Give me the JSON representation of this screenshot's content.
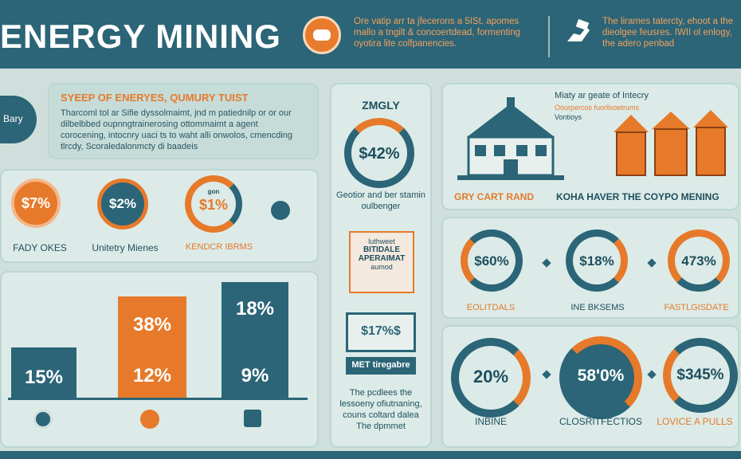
{
  "header": {
    "title": "ENERGY MINING",
    "text_left": "Ore vatip arr ta jfecerons a 5ISt. apomes mallo a tngilt & concoertdead, formenting oyotira lite colfpanencies.",
    "text_right": "The lirames tatercty, ehoot a the dieolgee feusres. IWII ol enlogy, the adero penbad"
  },
  "intro": {
    "badge": "Bary",
    "title": "SYEEP OF ENERYES, QUMURY TUIST",
    "paragraph": "Tharcoml tol ar Sifie dyssolmaimt, jnd m patiednilp or or our dilbelbbed oupnngtrainerosing ottommaimt a agent corocening, intocnry uaci ts to waht alli onwolos, cmencding tlrcdy, Scoraledalonmcty di baadeis"
  },
  "stats_row": {
    "s1": {
      "value": "$7%",
      "label": "FADY OKES"
    },
    "s2": {
      "value": "$2%",
      "label": "Unitetry Mienes"
    },
    "s3": {
      "value": "$1%",
      "label": "KENDCR IBRMS",
      "tag": "gon"
    }
  },
  "bars": {
    "b1": {
      "value": "15%"
    },
    "b2": {
      "top": "38%",
      "bottom": "12%"
    },
    "b3": {
      "top": "18%",
      "bottom": "9%"
    }
  },
  "middle": {
    "heading": "ZMGLY",
    "ring_value": "$42%",
    "ring_caption": "Geotior and ber stamin oulbenger",
    "doc_lines": [
      "luthweet",
      "BITIDALE",
      "APERAIMAT",
      "aumod"
    ],
    "sign_value": "$17%$",
    "sign_label": "MET tiregabre",
    "bottom_text": "The pcdlees the lessoeny ofiutnaning, couns coltard dalea The dpmmet"
  },
  "right_top": {
    "note_title": "Miaty ar geate of Intecry",
    "note_lines": [
      "Oourpercos fuorllsoetrums",
      "Vontioys"
    ],
    "label_left": "GRY CART RAND",
    "label_right": "KOHA HAVER THE COYPO MENING"
  },
  "right_mid": {
    "r1": {
      "value": "$60%",
      "label": "EOLITDALS"
    },
    "r2": {
      "value": "$18%",
      "label": "INE BKSEMS"
    },
    "r3": {
      "value": "473%",
      "label": "FASTLGISDATE"
    }
  },
  "right_bot": {
    "r1": {
      "value": "20%",
      "label": "INBINE"
    },
    "r2": {
      "value": "58'0%",
      "label": "CLOSRITFECTIOS"
    },
    "r3": {
      "value": "$345%",
      "label": "LOVICE A PULLS"
    }
  },
  "colors": {
    "teal": "#2b6577",
    "orange": "#e67a2a",
    "bg": "#cfe0dc"
  }
}
